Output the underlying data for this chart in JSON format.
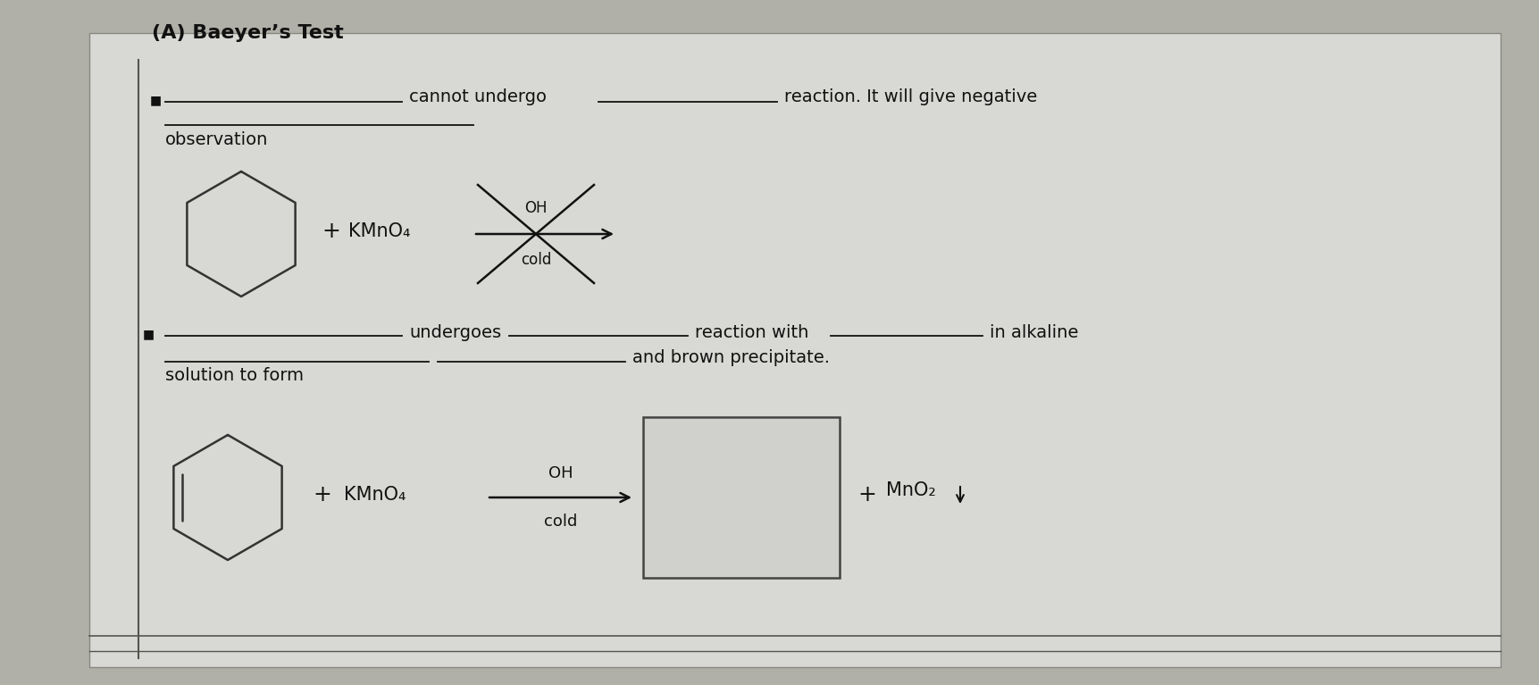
{
  "title": "(A) Baeyer’s Test",
  "bg_color": "#b0b0a8",
  "paper_color": "#d8d8d4",
  "line1_text1": "cannot undergo",
  "line1_text2": "reaction. It will give negative",
  "line1_sub": "observation",
  "line2_undergoes": "undergoes",
  "line2_reaction": "reaction with",
  "line2_alkaline": "in alkaline",
  "line2_solution": "solution to form",
  "line2_brown": "and brown precipitate.",
  "arrow_label_top": "OH",
  "arrow_label_bot": "cold",
  "arrow2_label_top": "OH",
  "arrow2_label_bot": "cold",
  "plus_sign": "+",
  "kmno4": "KMnO₄",
  "mno2_text": "MnO₂",
  "font_size_title": 16,
  "font_size_body": 14,
  "font_size_chem": 13
}
